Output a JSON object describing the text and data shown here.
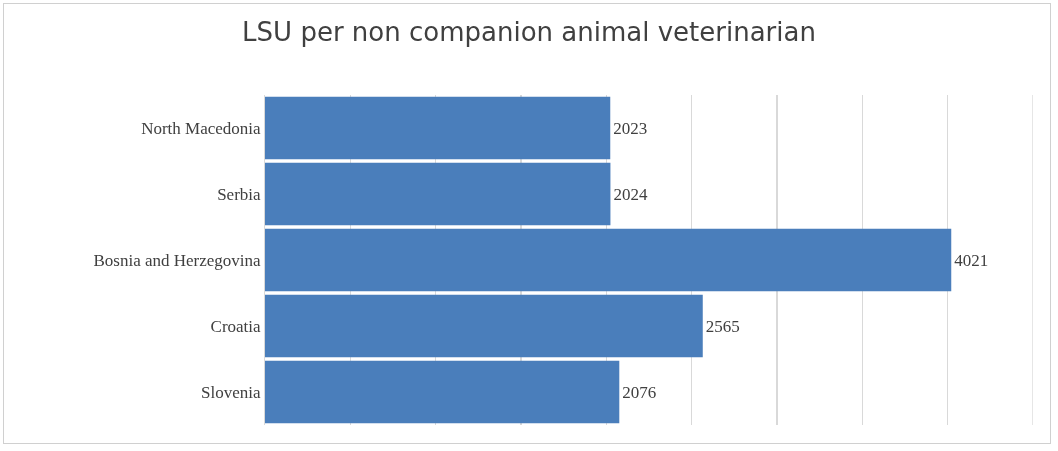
{
  "chart_data": {
    "type": "bar",
    "orientation": "horizontal",
    "title": "LSU per non companion animal veterinarian",
    "categories": [
      "North Macedonia",
      "Serbia",
      "Bosnia and Herzegovina",
      "Croatia",
      "Slovenia"
    ],
    "values": [
      2023,
      2024,
      4021,
      2565,
      2076
    ],
    "color": "#4a7ebb",
    "xlim": [
      0,
      4500
    ],
    "xticks": [
      {
        "value": 0,
        "label": null
      },
      {
        "value": 500,
        "label": null
      },
      {
        "value": 1000,
        "label": null
      },
      {
        "value": 1500,
        "label": null
      },
      {
        "value": 2000,
        "label": null
      },
      {
        "value": 2500,
        "label": null
      },
      {
        "value": 3000,
        "label": null
      },
      {
        "value": 3500,
        "label": null
      },
      {
        "value": 4000,
        "label": null
      }
    ],
    "grid": "x",
    "legend": false,
    "tick_labels": "y",
    "data_labels": true
  }
}
